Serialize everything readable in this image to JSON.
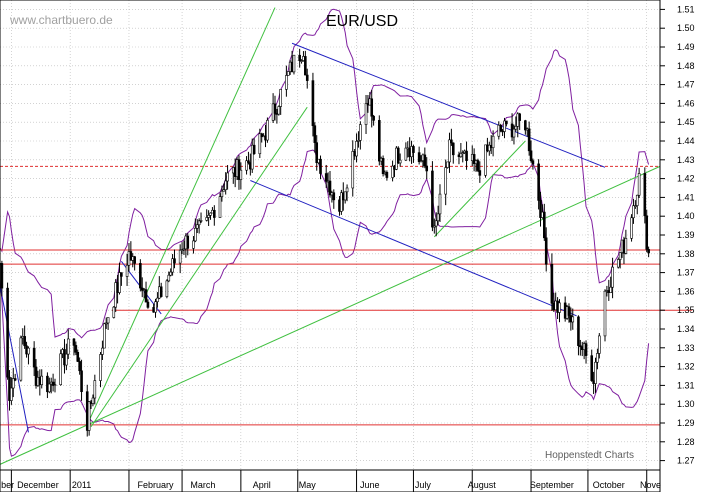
{
  "watermark": "www.chartbuero.de",
  "credit": "Hoppenstedt Charts",
  "chart_data": {
    "type": "candlestick",
    "title": "EUR/USD",
    "ylim": [
      1.265,
      1.515
    ],
    "yticks": [
      1.27,
      1.28,
      1.29,
      1.3,
      1.31,
      1.32,
      1.33,
      1.34,
      1.35,
      1.36,
      1.37,
      1.38,
      1.39,
      1.4,
      1.41,
      1.42,
      1.43,
      1.44,
      1.45,
      1.46,
      1.47,
      1.48,
      1.49,
      1.5,
      1.51
    ],
    "ytick_labels": [
      "1.27",
      "1.28",
      "1.29",
      "1.30",
      "1.31",
      "1.32",
      "1.33",
      "1.34",
      "1.35",
      "1.36",
      "1.37",
      "1.38",
      "1.39",
      "1.40",
      "1.41",
      "1.42",
      "1.43",
      "1.44",
      "1.45",
      "1.46",
      "1.47",
      "1.48",
      "1.49",
      "1.50",
      "1.51"
    ],
    "x_range": [
      "2010-11-25",
      "2011-11-08"
    ],
    "month_labels": [
      {
        "label": "ber",
        "date": "2010-11-29"
      },
      {
        "label": "December",
        "date": "2010-12-15"
      },
      {
        "label": "2011",
        "date": "2011-01-07"
      },
      {
        "label": "February",
        "date": "2011-02-15"
      },
      {
        "label": "March",
        "date": "2011-03-12"
      },
      {
        "label": "April",
        "date": "2011-04-12"
      },
      {
        "label": "May",
        "date": "2011-05-06"
      },
      {
        "label": "June",
        "date": "2011-06-08"
      },
      {
        "label": "July",
        "date": "2011-07-06"
      },
      {
        "label": "August",
        "date": "2011-08-06"
      },
      {
        "label": "September",
        "date": "2011-09-12"
      },
      {
        "label": "October",
        "date": "2011-10-12"
      },
      {
        "label": "Nove",
        "date": "2011-11-03"
      }
    ],
    "month_separators": [
      "2010-12-01",
      "2011-01-01",
      "2011-02-01",
      "2011-03-01",
      "2011-04-01",
      "2011-05-01",
      "2011-06-01",
      "2011-07-01",
      "2011-08-01",
      "2011-09-01",
      "2011-10-01",
      "2011-11-01"
    ],
    "price_path": [
      {
        "date": "2010-11-25",
        "value": 1.375
      },
      {
        "date": "2010-11-30",
        "value": 1.305
      },
      {
        "date": "2010-12-07",
        "value": 1.335
      },
      {
        "date": "2010-12-14",
        "value": 1.315
      },
      {
        "date": "2010-12-21",
        "value": 1.31
      },
      {
        "date": "2011-01-03",
        "value": 1.335
      },
      {
        "date": "2011-01-10",
        "value": 1.29
      },
      {
        "date": "2011-01-20",
        "value": 1.345
      },
      {
        "date": "2011-02-01",
        "value": 1.38
      },
      {
        "date": "2011-02-14",
        "value": 1.35
      },
      {
        "date": "2011-03-01",
        "value": 1.385
      },
      {
        "date": "2011-03-14",
        "value": 1.395
      },
      {
        "date": "2011-03-24",
        "value": 1.42
      },
      {
        "date": "2011-04-06",
        "value": 1.43
      },
      {
        "date": "2011-04-14",
        "value": 1.445
      },
      {
        "date": "2011-04-28",
        "value": 1.48
      },
      {
        "date": "2011-05-04",
        "value": 1.49
      },
      {
        "date": "2011-05-10",
        "value": 1.435
      },
      {
        "date": "2011-05-23",
        "value": 1.405
      },
      {
        "date": "2011-06-07",
        "value": 1.465
      },
      {
        "date": "2011-06-15",
        "value": 1.42
      },
      {
        "date": "2011-06-27",
        "value": 1.44
      },
      {
        "date": "2011-07-08",
        "value": 1.425
      },
      {
        "date": "2011-07-12",
        "value": 1.39
      },
      {
        "date": "2011-07-20",
        "value": 1.435
      },
      {
        "date": "2011-08-04",
        "value": 1.425
      },
      {
        "date": "2011-08-15",
        "value": 1.445
      },
      {
        "date": "2011-08-29",
        "value": 1.45
      },
      {
        "date": "2011-09-06",
        "value": 1.405
      },
      {
        "date": "2011-09-12",
        "value": 1.355
      },
      {
        "date": "2011-09-22",
        "value": 1.345
      },
      {
        "date": "2011-10-04",
        "value": 1.315
      },
      {
        "date": "2011-10-10",
        "value": 1.36
      },
      {
        "date": "2011-10-20",
        "value": 1.385
      },
      {
        "date": "2011-10-28",
        "value": 1.42
      },
      {
        "date": "2011-11-02",
        "value": 1.38
      }
    ],
    "bollinger_width": 0.033,
    "lines": [
      {
        "kind": "horizontal",
        "value": 1.4265,
        "color": "#e03030",
        "dashed": true
      },
      {
        "kind": "horizontal",
        "value": 1.382,
        "color": "#e03030",
        "dashed": false
      },
      {
        "kind": "horizontal",
        "value": 1.3745,
        "color": "#e03030",
        "dashed": false
      },
      {
        "kind": "horizontal",
        "value": 1.289,
        "color": "#e03030",
        "dashed": false
      },
      {
        "kind": "segment",
        "from": [
          "2011-11-25",
          1.35
        ],
        "to": [
          "2011-01-23",
          1.35
        ],
        "color": "#e03030"
      },
      {
        "kind": "segment",
        "from": [
          "2010-11-25",
          1.268
        ],
        "to": [
          "2011-11-08",
          1.4265
        ],
        "color": "#40c040"
      },
      {
        "kind": "segment",
        "from": [
          "2011-01-10",
          1.289
        ],
        "to": [
          "2011-04-19",
          1.511
        ],
        "color": "#40c040"
      },
      {
        "kind": "segment",
        "from": [
          "2011-01-12",
          1.288
        ],
        "to": [
          "2011-05-06",
          1.458
        ],
        "color": "#40c040"
      },
      {
        "kind": "segment",
        "from": [
          "2011-07-12",
          1.389
        ],
        "to": [
          "2011-08-29",
          1.44
        ],
        "color": "#40c040"
      },
      {
        "kind": "segment",
        "from": [
          "2011-04-28",
          1.492
        ],
        "to": [
          "2011-10-10",
          1.426
        ],
        "color": "#2020c0"
      },
      {
        "kind": "segment",
        "from": [
          "2011-04-06",
          1.419
        ],
        "to": [
          "2011-09-25",
          1.347
        ],
        "color": "#2020c0"
      },
      {
        "kind": "segment",
        "from": [
          "2010-11-25",
          1.363
        ],
        "to": [
          "2010-12-10",
          1.285
        ],
        "color": "#2020c0"
      },
      {
        "kind": "segment",
        "from": [
          "2011-01-28",
          1.376
        ],
        "to": [
          "2011-02-18",
          1.348
        ],
        "color": "#2020c0"
      }
    ],
    "colors": {
      "candles": "#000000",
      "bollinger": "#8020a0",
      "grid": "#b8b8b8",
      "support": "#e03030",
      "trend_up": "#40c040",
      "trend_down": "#2020c0"
    }
  }
}
